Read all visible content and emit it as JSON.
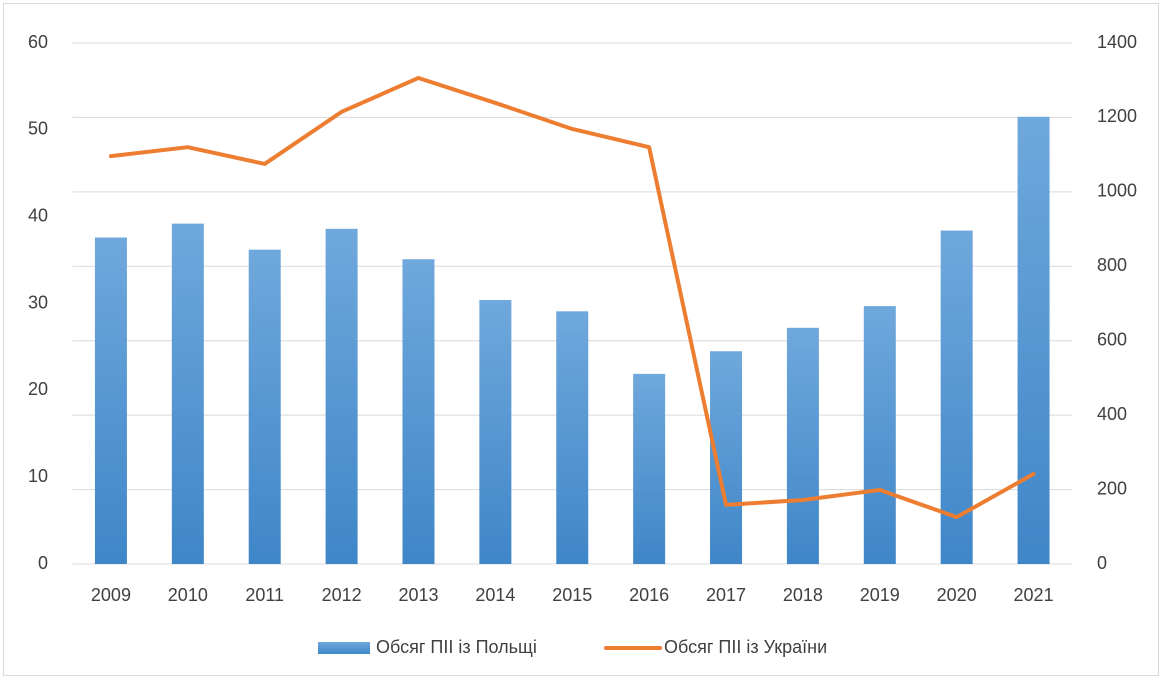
{
  "chart_data": {
    "type": "bar_line",
    "categories": [
      "2009",
      "2010",
      "2011",
      "2012",
      "2013",
      "2014",
      "2015",
      "2016",
      "2017",
      "2018",
      "2019",
      "2020",
      "2021"
    ],
    "series": [
      {
        "name": "Обсяг ПІІ із Польщі",
        "type": "bar",
        "color": "#5b9bd5",
        "values": [
          37.6,
          39.2,
          36.2,
          38.6,
          35.1,
          30.4,
          29.1,
          21.9,
          24.5,
          27.2,
          29.7,
          38.4,
          51.5
        ]
      },
      {
        "name": "Обсяг ПІІ із України",
        "type": "line",
        "axis": "y2",
        "color": "#ed7d31",
        "values": [
          1096,
          1120,
          1075,
          1215,
          1306,
          1239,
          1169,
          1120,
          159,
          172,
          199,
          126,
          242
        ]
      }
    ],
    "ylim": [
      0,
      60
    ],
    "yticks": [
      0,
      10,
      20,
      30,
      40,
      50,
      60
    ],
    "y2lim": [
      0,
      1400
    ],
    "y2ticks": [
      0,
      200,
      400,
      600,
      800,
      1000,
      1200,
      1400
    ],
    "grid": true,
    "legend": "bottom"
  }
}
